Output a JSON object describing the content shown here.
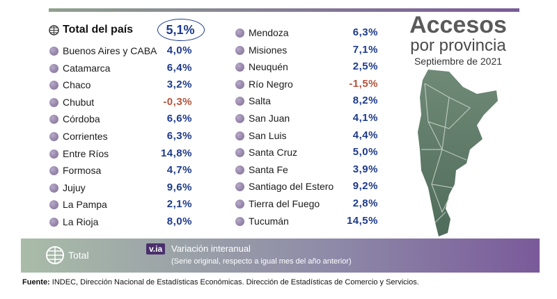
{
  "header": {
    "title": "Accesos",
    "title_line2": "por provincia",
    "subtitle": "Septiembre de 2021"
  },
  "total": {
    "label": "Total del país",
    "value": "5,1%"
  },
  "left": [
    [
      "Buenos Aires y CABA",
      "4,0%"
    ],
    [
      "Catamarca",
      "6,4%"
    ],
    [
      "Chaco",
      "3,2%"
    ],
    [
      "Chubut",
      "-0,3%"
    ],
    [
      "Córdoba",
      "6,6%"
    ],
    [
      "Corrientes",
      "6,3%"
    ],
    [
      "Entre Ríos",
      "14,8%"
    ],
    [
      "Formosa",
      "4,7%"
    ],
    [
      "Jujuy",
      "9,6%"
    ],
    [
      "La Pampa",
      "2,1%"
    ],
    [
      "La Rioja",
      "8,0%"
    ]
  ],
  "right": [
    [
      "Mendoza",
      "6,3%"
    ],
    [
      "Misiones",
      "7,1%"
    ],
    [
      "Neuquén",
      "2,5%"
    ],
    [
      "Río Negro",
      "-1,5%"
    ],
    [
      "Salta",
      "8,2%"
    ],
    [
      "San Juan",
      "4,1%"
    ],
    [
      "San Luis",
      "4,4%"
    ],
    [
      "Santa Cruz",
      "5,0%"
    ],
    [
      "Santa Fe",
      "3,9%"
    ],
    [
      "Santiago del Estero",
      "9,2%"
    ],
    [
      "Tierra del Fuego",
      "2,8%"
    ],
    [
      "Tucumán",
      "14,5%"
    ]
  ],
  "legend": {
    "total": "Total",
    "badge": "v.ia",
    "text": "Variación interanual",
    "note": "(Serie original, respecto a igual mes del año anterior)"
  },
  "source": {
    "label": "Fuente:",
    "text": "INDEC, Dirección Nacional de Estadísticas Económicas. Dirección de Estadísticas de Comercio y Servicios."
  }
}
